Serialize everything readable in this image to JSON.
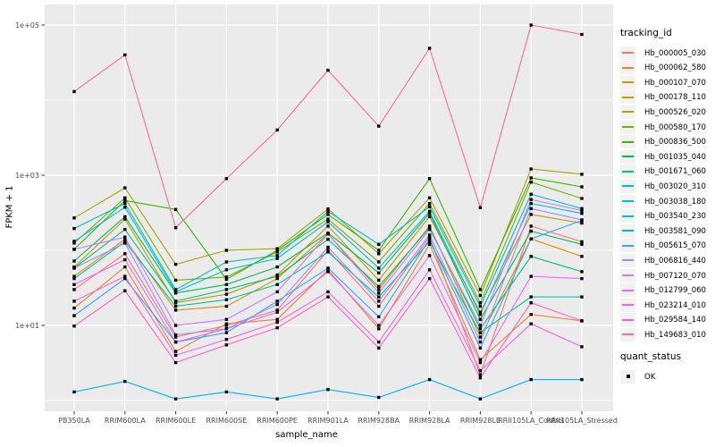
{
  "chart_data": {
    "type": "line",
    "title": "",
    "xlabel": "sample_name",
    "ylabel": "FPKM + 1",
    "y_scale": "log10",
    "ylim": [
      1,
      100000
    ],
    "grid": true,
    "legend_position": "right",
    "marker": "square",
    "y_axis_ticks": [
      {
        "label": "1e+05",
        "value": 100000
      },
      {
        "label": "1e+03",
        "value": 1000
      },
      {
        "label": "1e+01",
        "value": 10
      }
    ],
    "categories": [
      "PB350LA",
      "RRIM600LA",
      "RRIM600LE",
      "RRIM600SE",
      "RRIM600PE",
      "RRIM901LA",
      "RRIM928BA",
      "RRIM928LA",
      "RRIM928LE",
      "RRII105LA_Control",
      "RRII105LA_Stressed"
    ],
    "series": [
      {
        "name": "Hb_000005_030",
        "color": "#F8766D",
        "values": [
          30,
          90,
          7,
          10,
          16,
          100,
          18,
          150,
          2.2,
          210,
          130
        ]
      },
      {
        "name": "Hb_000062_580",
        "color": "#EA8331",
        "values": [
          17,
          60,
          4.5,
          10.5,
          12,
          55,
          9,
          120,
          3.5,
          14,
          11.5
        ]
      },
      {
        "name": "Hb_000107_070",
        "color": "#D89000",
        "values": [
          45,
          140,
          16,
          18,
          42,
          165,
          30,
          210,
          7,
          142,
          83
        ]
      },
      {
        "name": "Hb_000178_110",
        "color": "#C09B00",
        "values": [
          60,
          260,
          20,
          26,
          47,
          210,
          40,
          280,
          15,
          300,
          230
        ]
      },
      {
        "name": "Hb_000526_020",
        "color": "#A3A500",
        "values": [
          270,
          680,
          65,
          100,
          105,
          355,
          90,
          500,
          25,
          1210,
          1030
        ]
      },
      {
        "name": "Hb_000580_170",
        "color": "#7CAE00",
        "values": [
          125,
          500,
          40,
          44,
          95,
          260,
          70,
          420,
          20,
          810,
          490
        ]
      },
      {
        "name": "Hb_000836_500",
        "color": "#39B600",
        "values": [
          103,
          460,
          350,
          41,
          100,
          300,
          100,
          900,
          30,
          920,
          700
        ]
      },
      {
        "name": "Hb_001035_040",
        "color": "#00BB4E",
        "values": [
          72,
          280,
          27,
          35,
          60,
          170,
          50,
          310,
          12,
          180,
          120
        ]
      },
      {
        "name": "Hb_001671_060",
        "color": "#00BF7D",
        "values": [
          58,
          190,
          21,
          30,
          45,
          140,
          33,
          200,
          9,
          83,
          52
        ]
      },
      {
        "name": "Hb_003020_310",
        "color": "#00C1A3",
        "values": [
          42,
          130,
          18,
          22,
          35,
          95,
          24,
          130,
          8,
          24,
          24
        ]
      },
      {
        "name": "Hb_003038_180",
        "color": "#00BFC4",
        "values": [
          195,
          420,
          30,
          70,
          85,
          330,
          120,
          380,
          18,
          560,
          360
        ]
      },
      {
        "name": "Hb_003540_230",
        "color": "#00BAE0",
        "values": [
          132,
          375,
          28,
          55,
          78,
          240,
          58,
          330,
          14,
          420,
          310
        ]
      },
      {
        "name": "Hb_003581_090",
        "color": "#00B0F6",
        "values": [
          1.3,
          1.8,
          1.05,
          1.3,
          1.05,
          1.4,
          1.1,
          1.9,
          1.05,
          1.9,
          1.9
        ]
      },
      {
        "name": "Hb_005615_070",
        "color": "#35A2FF",
        "values": [
          13.5,
          42,
          6,
          8,
          21,
          58,
          13,
          140,
          5,
          142,
          250
        ]
      },
      {
        "name": "Hb_006816_440",
        "color": "#9590FF",
        "values": [
          58,
          125,
          7.5,
          9,
          19,
          110,
          21,
          160,
          6,
          360,
          255
        ]
      },
      {
        "name": "Hb_007120_070",
        "color": "#C77CFF",
        "values": [
          103,
          150,
          10,
          12,
          28,
          165,
          27,
          190,
          10,
          475,
          340
        ]
      },
      {
        "name": "Hb_012799_060",
        "color": "#E76BF3",
        "values": [
          35,
          75,
          6,
          9,
          15,
          52,
          10,
          85,
          3.2,
          45,
          42
        ]
      },
      {
        "name": "Hb_023214_010",
        "color": "#FA62DB",
        "values": [
          21,
          45,
          4,
          6.5,
          11,
          28,
          6,
          55,
          2.5,
          10.5,
          5.2
        ]
      },
      {
        "name": "Hb_029584_140",
        "color": "#FF62BC",
        "values": [
          9.8,
          29,
          3.2,
          5.5,
          9.3,
          24,
          5,
          42,
          2,
          20,
          11.5
        ]
      },
      {
        "name": "Hb_149683_010",
        "color": "#FF6A98",
        "values": [
          13000,
          40000,
          200,
          900,
          4000,
          25000,
          4500,
          49000,
          370,
          100000,
          75000
        ]
      }
    ],
    "legend": {
      "tracking_title": "tracking_id",
      "quant_title": "quant_status",
      "quant_entries": [
        {
          "label": "OK",
          "marker": "square",
          "color": "#000000"
        }
      ]
    }
  },
  "style": {
    "page_bg": "#FFFFFF",
    "panel_bg": "#EBEBEB",
    "grid_color": "#FFFFFF",
    "tick_mark_color": "#333333",
    "tick_label_color": "#4D4D4D",
    "axis_title_color": "#000000",
    "marker_color": "#000000",
    "legend_key_bg": "#F2F2F2"
  }
}
